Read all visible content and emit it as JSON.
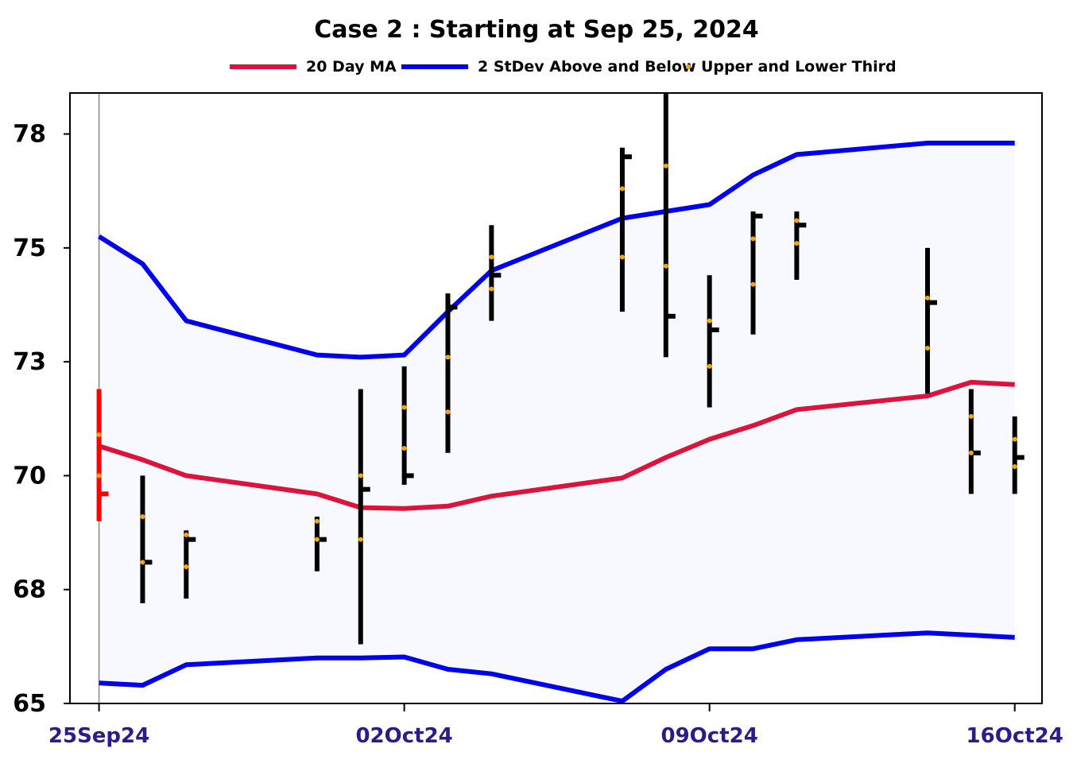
{
  "chart_data": {
    "type": "ohlc",
    "title": "Case 2 :  Starting at Sep 25, 2024",
    "legend": [
      {
        "label": "20 Day MA",
        "kind": "line",
        "color": "#dc143c"
      },
      {
        "label": "2 StDev Above and Below",
        "kind": "line",
        "color": "#0000ee"
      },
      {
        "label": "Upper  and Lower Third",
        "kind": "dot",
        "color": "#ffa500"
      }
    ],
    "xlabel": "",
    "ylabel": "",
    "ylim": [
      65.0,
      78.4
    ],
    "yticks": [
      {
        "value": 65.0,
        "label": "65"
      },
      {
        "value": 67.5,
        "label": "68"
      },
      {
        "value": 70.0,
        "label": "70"
      },
      {
        "value": 72.5,
        "label": "73"
      },
      {
        "value": 75.0,
        "label": "75"
      },
      {
        "value": 77.5,
        "label": "78"
      }
    ],
    "xticks": [
      {
        "date": "2024-09-25",
        "label": "25Sep24"
      },
      {
        "date": "2024-10-02",
        "label": "02Oct24"
      },
      {
        "date": "2024-10-09",
        "label": "09Oct24"
      },
      {
        "date": "2024-10-16",
        "label": "16Oct24"
      }
    ],
    "xlim": [
      "2024-09-24T08:00",
      "2024-10-16T15:00"
    ],
    "start_date": "2024-09-25",
    "colors": {
      "bar": "#000000",
      "start_bar": "#ff0000",
      "ma": "#dc143c",
      "band": "#0000ee",
      "third": "#ffa500",
      "fill": "#f8f8ff",
      "axis_label": "#2b1b8c"
    },
    "bars": [
      {
        "date": "2024-09-25",
        "high": 71.9,
        "low": 69.0,
        "close": 69.6
      },
      {
        "date": "2024-09-26",
        "high": 70.0,
        "low": 67.2,
        "close": 68.1
      },
      {
        "date": "2024-09-27",
        "high": 68.8,
        "low": 67.3,
        "close": 68.6
      },
      {
        "date": "2024-09-30",
        "high": 69.1,
        "low": 67.9,
        "close": 68.6
      },
      {
        "date": "2024-10-01",
        "high": 71.9,
        "low": 66.3,
        "close": 69.7
      },
      {
        "date": "2024-10-02",
        "high": 72.4,
        "low": 69.8,
        "close": 70.0
      },
      {
        "date": "2024-10-03",
        "high": 74.0,
        "low": 70.5,
        "close": 73.7
      },
      {
        "date": "2024-10-04",
        "high": 75.5,
        "low": 73.4,
        "close": 74.4
      },
      {
        "date": "2024-10-07",
        "high": 77.2,
        "low": 73.6,
        "close": 77.0
      },
      {
        "date": "2024-10-08",
        "high": 78.4,
        "low": 72.6,
        "close": 73.5
      },
      {
        "date": "2024-10-09",
        "high": 74.4,
        "low": 71.5,
        "close": 73.2
      },
      {
        "date": "2024-10-10",
        "high": 75.8,
        "low": 73.1,
        "close": 75.7
      },
      {
        "date": "2024-10-11",
        "high": 75.8,
        "low": 74.3,
        "close": 75.5
      },
      {
        "date": "2024-10-14",
        "high": 75.0,
        "low": 71.8,
        "close": 73.8
      },
      {
        "date": "2024-10-15",
        "high": 71.9,
        "low": 69.6,
        "close": 70.5
      },
      {
        "date": "2024-10-16",
        "high": 71.3,
        "low": 69.6,
        "close": 70.4
      }
    ],
    "ma_20": [
      70.65,
      70.35,
      70.0,
      69.6,
      69.3,
      69.28,
      69.33,
      69.55,
      69.95,
      70.4,
      70.8,
      71.1,
      71.45,
      71.75,
      72.05,
      72.0
    ],
    "upper_band": [
      75.25,
      74.65,
      73.4,
      72.65,
      72.6,
      72.65,
      73.6,
      74.5,
      75.65,
      75.8,
      75.95,
      76.6,
      77.05,
      77.3,
      77.3,
      77.3
    ],
    "lower_band": [
      65.45,
      65.4,
      65.85,
      66.0,
      66.0,
      66.02,
      65.75,
      65.65,
      65.05,
      65.75,
      66.2,
      66.2,
      66.4,
      66.55,
      66.5,
      66.45
    ],
    "upper_third": [
      70.9,
      69.1,
      68.7,
      69.0,
      70.0,
      71.5,
      72.6,
      74.8,
      76.3,
      76.8,
      73.4,
      75.2,
      75.6,
      73.9,
      71.3,
      70.8
    ],
    "lower_third": [
      70.0,
      68.1,
      68.0,
      68.6,
      68.6,
      70.6,
      71.4,
      74.1,
      74.8,
      74.6,
      72.4,
      74.2,
      75.1,
      72.8,
      70.5,
      70.2
    ]
  }
}
